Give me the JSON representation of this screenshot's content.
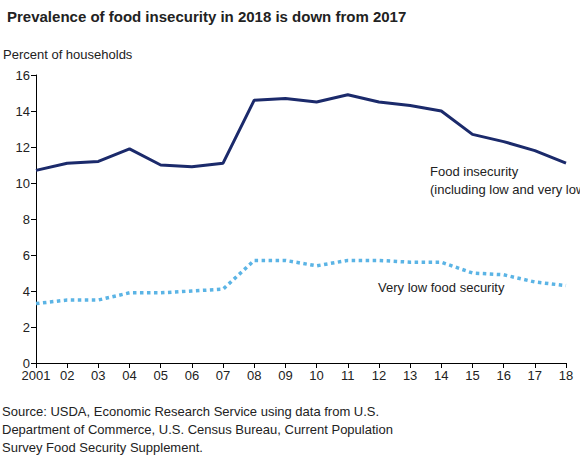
{
  "chart_data": {
    "type": "line",
    "title": "Prevalence of food insecurity in 2018 is down from 2017",
    "y_label": "Percent of households",
    "categories": [
      "2001",
      "02",
      "03",
      "04",
      "05",
      "06",
      "07",
      "08",
      "09",
      "10",
      "11",
      "12",
      "13",
      "14",
      "15",
      "16",
      "17",
      "18"
    ],
    "series": [
      {
        "name": "Food insecurity",
        "color": "#1b2a6b",
        "line_style": "solid",
        "values": [
          10.7,
          11.1,
          11.2,
          11.9,
          11.0,
          10.9,
          11.1,
          14.6,
          14.7,
          14.5,
          14.9,
          14.5,
          14.3,
          14.0,
          12.7,
          12.3,
          11.8,
          11.1
        ]
      },
      {
        "name": "Very low food security",
        "color": "#5bb4e5",
        "line_style": "dotted",
        "values": [
          3.3,
          3.5,
          3.5,
          3.9,
          3.9,
          4.0,
          4.1,
          5.7,
          5.7,
          5.4,
          5.7,
          5.7,
          5.6,
          5.6,
          5.0,
          4.9,
          4.5,
          4.3
        ]
      }
    ],
    "annotations": [
      "Food insecurity",
      "(including low and very low food security)",
      "Very low food security"
    ],
    "ylim": [
      0,
      16
    ],
    "yticks": [
      0,
      2,
      4,
      6,
      8,
      10,
      12,
      14,
      16
    ],
    "grid": false,
    "source": "Source: USDA, Economic Research Service using data from U.S.\nDepartment of Commerce, U.S. Census Bureau, Current Population\nSurvey Food Security Supplement."
  }
}
